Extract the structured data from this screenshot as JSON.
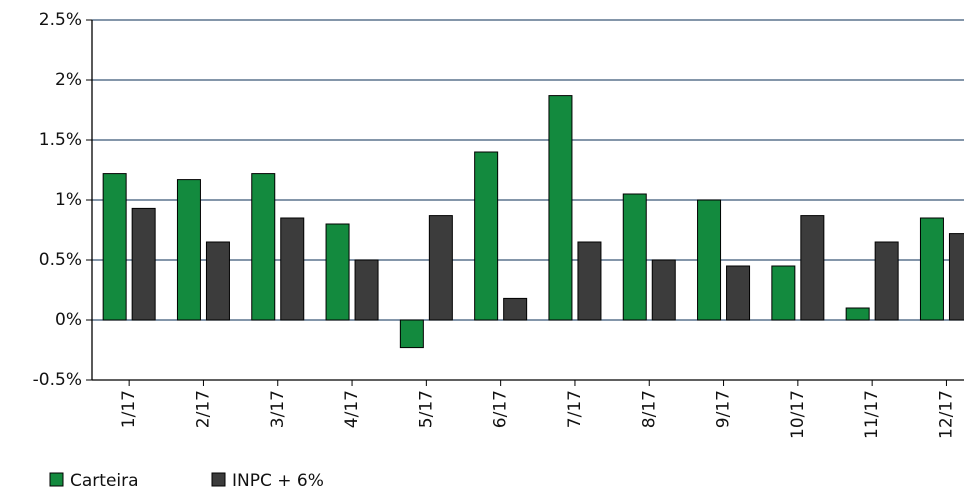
{
  "chart_data": {
    "type": "bar",
    "categories": [
      "1/17",
      "2/17",
      "3/17",
      "4/17",
      "5/17",
      "6/17",
      "7/17",
      "8/17",
      "9/17",
      "10/17",
      "11/17",
      "12/17"
    ],
    "series": [
      {
        "name": "Carteira",
        "color": "#138a3e",
        "values": [
          1.22,
          1.17,
          1.22,
          0.8,
          -0.23,
          1.4,
          1.87,
          1.05,
          1.0,
          0.45,
          0.1,
          0.85
        ]
      },
      {
        "name": "INPC + 6%",
        "color": "#3c3c3c",
        "values": [
          0.93,
          0.65,
          0.85,
          0.5,
          0.87,
          0.18,
          0.65,
          0.5,
          0.45,
          0.87,
          0.65,
          0.72
        ]
      }
    ],
    "ylim": [
      -0.5,
      2.5
    ],
    "yticks": [
      {
        "value": -0.5,
        "label": "-0.5%"
      },
      {
        "value": 0,
        "label": "0%"
      },
      {
        "value": 0.5,
        "label": "0.5%"
      },
      {
        "value": 1,
        "label": "1%"
      },
      {
        "value": 1.5,
        "label": "1.5%"
      },
      {
        "value": 2,
        "label": "2%"
      },
      {
        "value": 2.5,
        "label": "2.5%"
      }
    ],
    "grid": true,
    "legend": "bottom-left"
  }
}
